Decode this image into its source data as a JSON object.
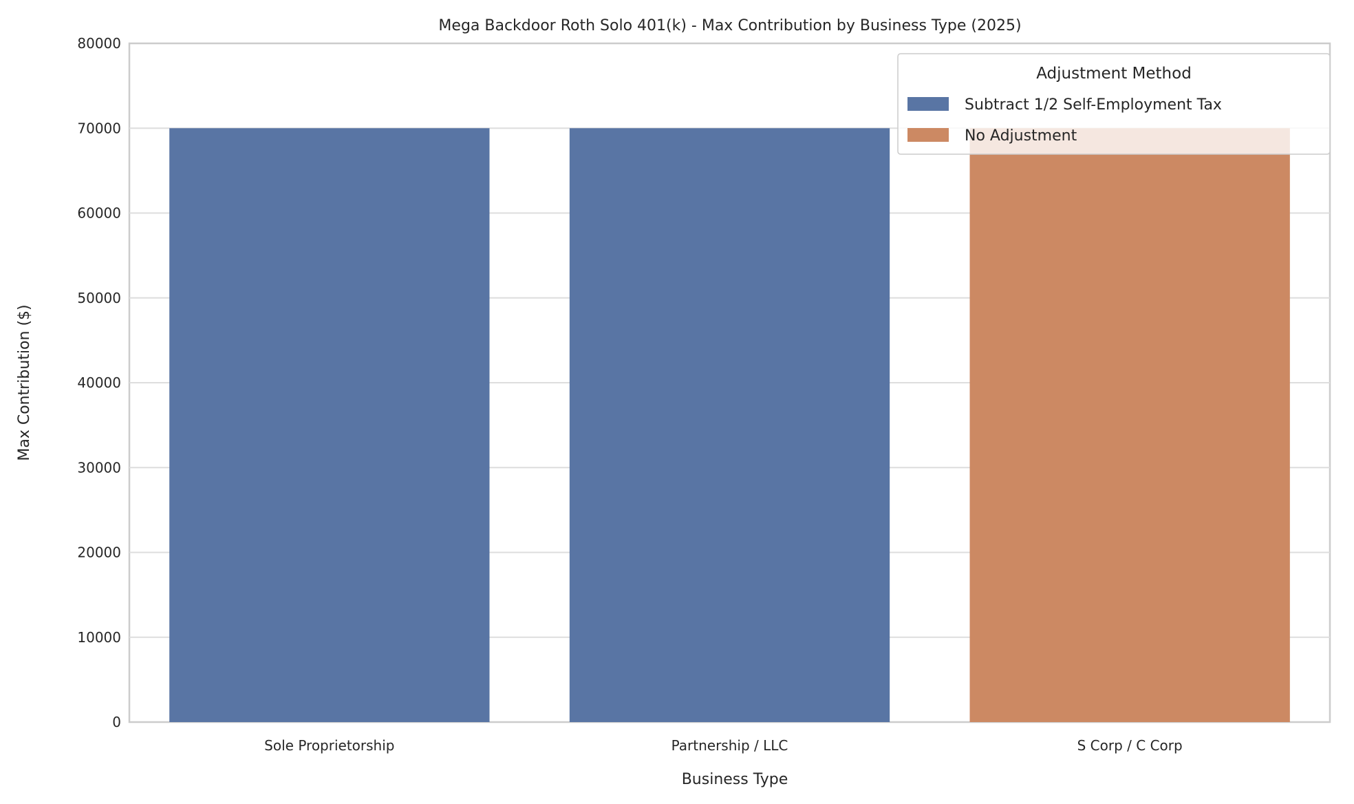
{
  "chart_data": {
    "type": "bar",
    "title": "Mega Backdoor Roth Solo 401(k) - Max Contribution by Business Type (2025)",
    "xlabel": "Business Type",
    "ylabel": "Max Contribution ($)",
    "categories": [
      "Sole Proprietorship",
      "Partnership / LLC",
      "S Corp / C Corp"
    ],
    "values": [
      70000,
      70000,
      70000
    ],
    "bar_series": [
      "Subtract 1/2 Self-Employment Tax",
      "Subtract 1/2 Self-Employment Tax",
      "No Adjustment"
    ],
    "ylim": [
      0,
      80000
    ],
    "yticks": [
      "0",
      "10000",
      "20000",
      "30000",
      "40000",
      "50000",
      "60000",
      "70000",
      "80000"
    ],
    "grid": true,
    "legend": {
      "title": "Adjustment Method",
      "placement": "top-right",
      "entries": [
        {
          "name": "Subtract 1/2 Self-Employment Tax",
          "color": "#5975a4"
        },
        {
          "name": "No Adjustment",
          "color": "#cc8963"
        }
      ]
    }
  }
}
